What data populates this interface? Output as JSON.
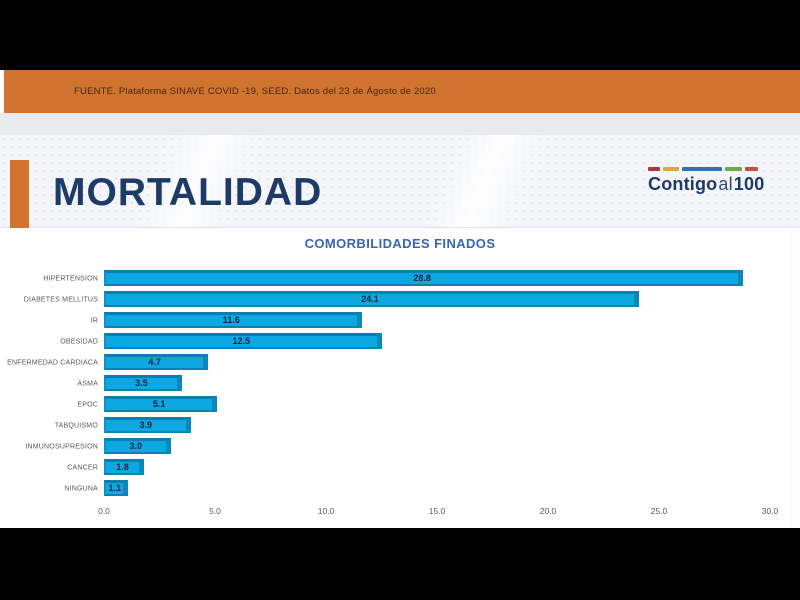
{
  "source_bar": {
    "text": "FUENTE. Plataforma SINAVE COVID -19, SEED. Datos del 23 de Ágosto de 2020"
  },
  "header": {
    "title": "MORTALIDAD",
    "accent_color": "#d0742f",
    "title_color": "#1e3a66",
    "logo": {
      "word_bold_1": "Contigo",
      "word_mid": "al",
      "word_bold_2": "100",
      "segments": [
        {
          "color": "#a93a38",
          "width": 12
        },
        {
          "color": "#e2a73b",
          "width": 16
        },
        {
          "color": "#2e74b5",
          "width": 40
        },
        {
          "color": "#6fa84f",
          "width": 17
        },
        {
          "color": "#c05046",
          "width": 13
        }
      ]
    }
  },
  "chart_data": {
    "type": "bar",
    "orientation": "horizontal",
    "title": "COMORBILIDADES FINADOS",
    "categories": [
      "HIPERTENSION",
      "DIABETES MELLITUS",
      "IR",
      "OBESIDAD",
      "ENFERMEDAD CARDIACA",
      "ASMA",
      "EPOC",
      "TABQUISMO",
      "INMUNOSUPRESION",
      "CANCER",
      "NINGUNA"
    ],
    "values": [
      28.8,
      24.1,
      11.6,
      12.5,
      4.7,
      3.5,
      5.1,
      3.9,
      3.0,
      1.8,
      1.1
    ],
    "xlim": [
      0,
      30
    ],
    "x_ticks": [
      0.0,
      5.0,
      10.0,
      15.0,
      20.0,
      25.0,
      30.0
    ],
    "grid": false,
    "legend": false,
    "bar_color": "#0da7e2",
    "bar_edge_color": "#0b7eae",
    "value_label_color": "#14243e",
    "title_color": "#3767ae"
  }
}
